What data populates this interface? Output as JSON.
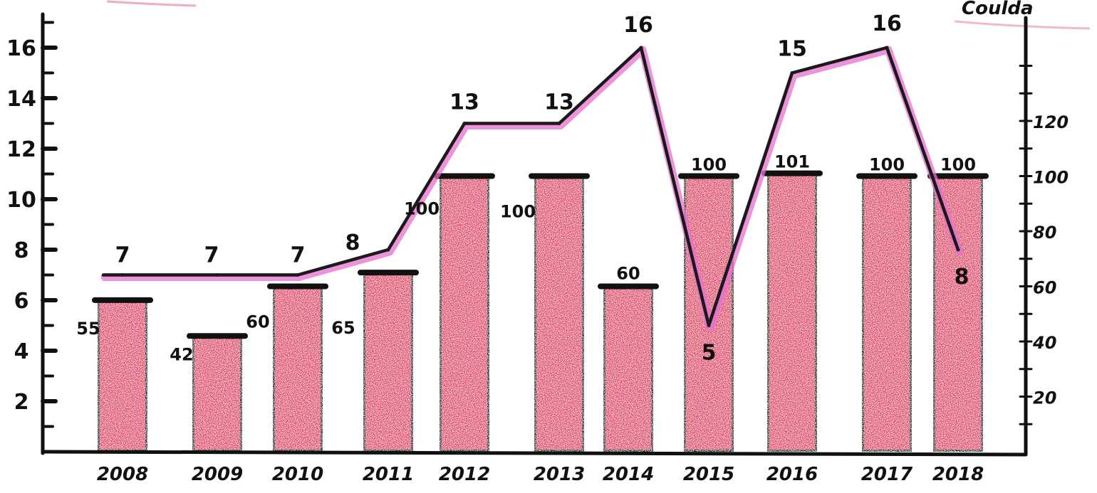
{
  "chart_data": {
    "type": "bar",
    "categories": [
      "2008",
      "2009",
      "2010",
      "2011",
      "2012",
      "2013",
      "2014",
      "2015",
      "2016",
      "2017",
      "2018"
    ],
    "series": [
      {
        "type": "bar",
        "axis": "right",
        "values": [
          55,
          42,
          60,
          65,
          100,
          100,
          60,
          100,
          101,
          100,
          100
        ],
        "labels": [
          "55",
          "42",
          "60",
          "65",
          "100",
          "100",
          "60",
          "100",
          "101",
          "100",
          "100"
        ]
      },
      {
        "type": "line",
        "axis": "left",
        "values": [
          7,
          7,
          7,
          8,
          13,
          13,
          16,
          5,
          15,
          16,
          8
        ],
        "labels": [
          "7",
          "7",
          "7",
          "8",
          "13",
          "13",
          "16",
          "5",
          "15",
          "16",
          "8"
        ]
      }
    ],
    "y_left": {
      "ticks": [
        "2",
        "4",
        "6",
        "8",
        "10",
        "12",
        "14",
        "16"
      ],
      "ylim": [
        0,
        17.5
      ]
    },
    "y_right": {
      "ticks": [
        "20",
        "40",
        "60",
        "80",
        "100",
        "120"
      ],
      "ylim": [
        0,
        140
      ]
    },
    "corner_text": "Coulda",
    "colors": {
      "bar_fill": "#e0325f",
      "bar_outline": "#111111",
      "line": "#1a1a1a",
      "line_glow": "#e56fd0",
      "axis": "#111111"
    },
    "grid": false,
    "legend": "none"
  }
}
